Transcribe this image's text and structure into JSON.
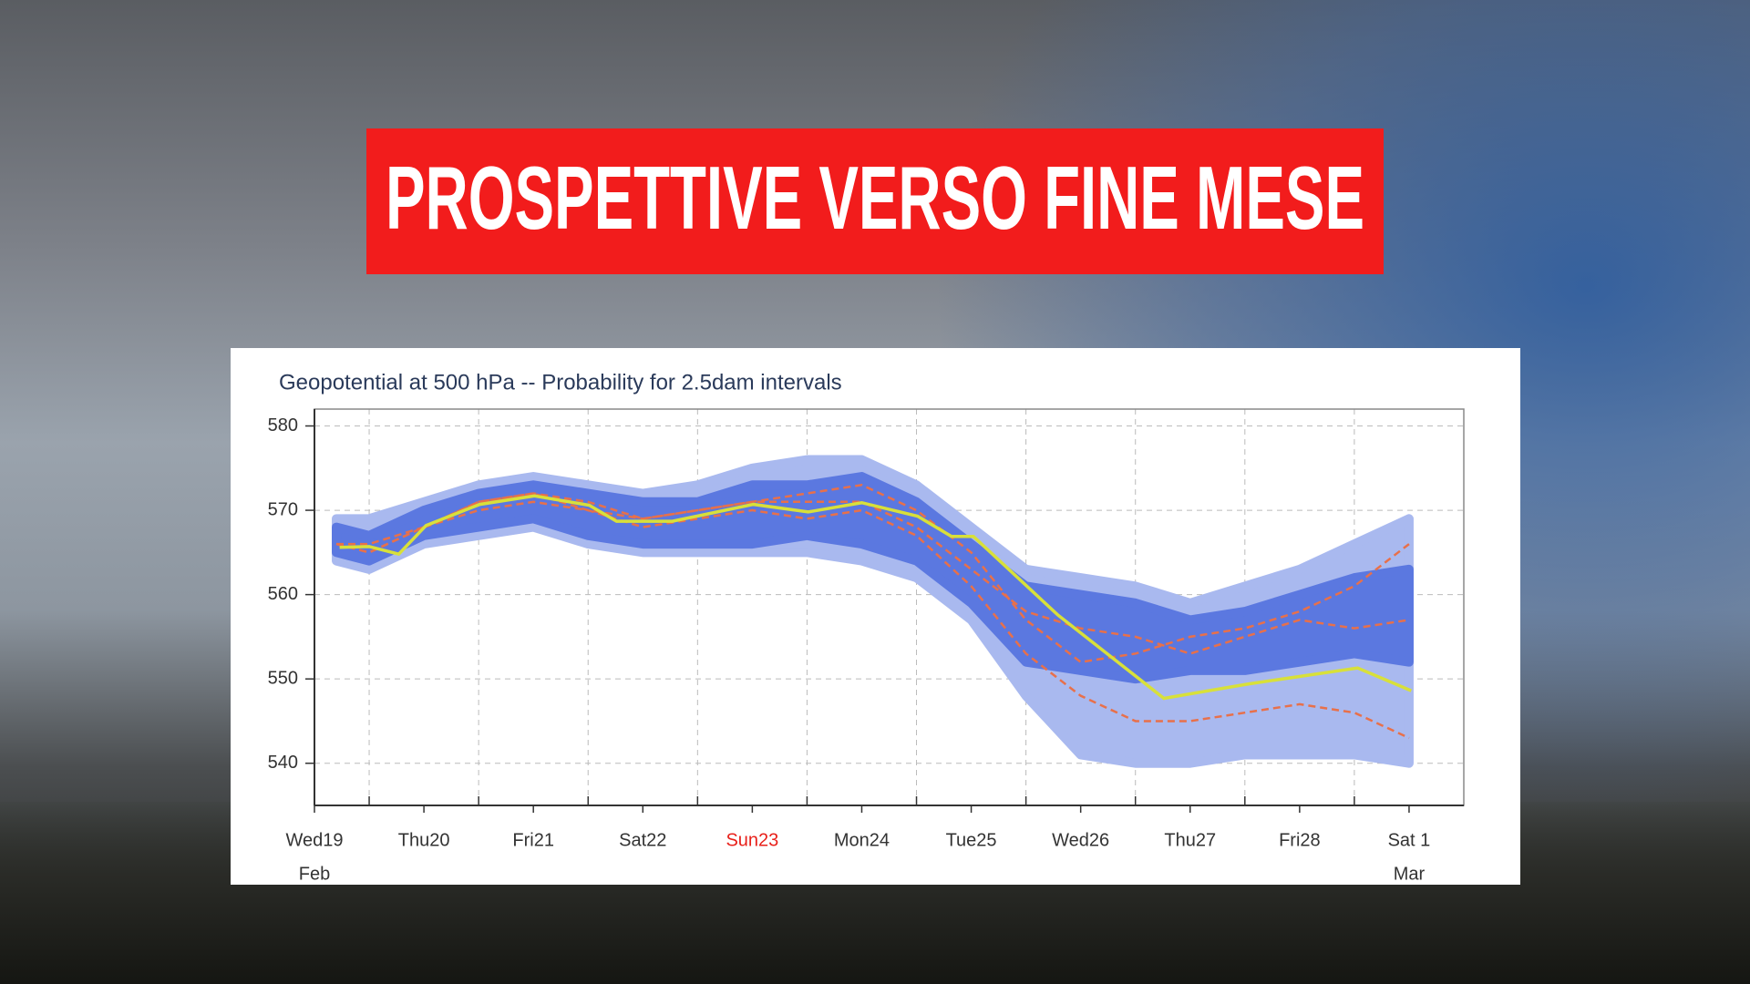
{
  "banner": {
    "title": "PROSPETTIVE VERSO FINE MESE"
  },
  "chart_data": {
    "type": "line",
    "title": "Geopotential at 500 hPa -- Probability for 2.5dam intervals",
    "xlim": [
      0,
      10.5
    ],
    "ylim": [
      535,
      582
    ],
    "yticks": [
      540,
      550,
      560,
      570,
      580
    ],
    "xticks": [
      {
        "value": 0,
        "label": "Wed19"
      },
      {
        "value": 1,
        "label": "Thu20"
      },
      {
        "value": 2,
        "label": "Fri21"
      },
      {
        "value": 3,
        "label": "Sat22"
      },
      {
        "value": 4,
        "label": "Sun23",
        "color": "#e8201a"
      },
      {
        "value": 5,
        "label": "Mon24"
      },
      {
        "value": 6,
        "label": "Tue25"
      },
      {
        "value": 7,
        "label": "Wed26"
      },
      {
        "value": 8,
        "label": "Thu27"
      },
      {
        "value": 9,
        "label": "Fri28"
      },
      {
        "value": 10,
        "label": "Sat 1"
      }
    ],
    "x_sublabels": [
      {
        "value": 0,
        "label": "Feb"
      },
      {
        "value": 10,
        "label": "Mar"
      }
    ],
    "xgrid": [
      0.5,
      1.5,
      2.5,
      3.5,
      4.5,
      5.5,
      6.5,
      7.5,
      8.5,
      9.5
    ],
    "grid": true,
    "bands": [
      {
        "color": "#a9b9ef",
        "x": [
          0.2,
          0.5,
          1,
          1.5,
          2,
          2.5,
          3,
          3.5,
          4,
          4.5,
          5,
          5.5,
          6,
          6.5,
          7,
          7.5,
          8,
          8.5,
          9,
          9.5,
          10
        ],
        "high": [
          569,
          569,
          571,
          573,
          574,
          573,
          572,
          573,
          575,
          576,
          576,
          573,
          568,
          563,
          562,
          561,
          559,
          561,
          563,
          566,
          569
        ],
        "low": [
          564,
          563,
          566,
          567,
          568,
          566,
          565,
          565,
          565,
          565,
          564,
          562,
          557,
          548,
          541,
          540,
          540,
          541,
          541,
          541,
          540
        ]
      },
      {
        "color": "#5b78e0",
        "x": [
          0.2,
          0.5,
          1,
          1.5,
          2,
          2.5,
          3,
          3.5,
          4,
          4.5,
          5,
          5.5,
          6,
          6.5,
          7,
          7.5,
          8,
          8.5,
          9,
          9.5,
          10
        ],
        "high": [
          568,
          567,
          570,
          572,
          573,
          572,
          571,
          571,
          573,
          573,
          574,
          571,
          566,
          561,
          560,
          559,
          557,
          558,
          560,
          562,
          563
        ],
        "low": [
          565,
          564,
          567,
          568,
          569,
          567,
          566,
          566,
          566,
          567,
          566,
          564,
          559,
          552,
          551,
          550,
          551,
          551,
          552,
          553,
          552
        ]
      }
    ],
    "members": [
      {
        "color": "#e8704a",
        "x": [
          0.2,
          0.5,
          1,
          1.5,
          2,
          2.5,
          3,
          3.5,
          4,
          4.5,
          5,
          5.5,
          6,
          6.5,
          7,
          7.5,
          8,
          8.5,
          9,
          9.5,
          10
        ],
        "values": [
          566,
          566,
          568,
          571,
          572,
          571,
          569,
          570,
          571,
          572,
          573,
          570,
          565,
          557,
          552,
          553,
          555,
          556,
          558,
          561,
          566
        ]
      },
      {
        "color": "#e8704a",
        "x": [
          0.2,
          0.5,
          1,
          1.5,
          2,
          2.5,
          3,
          3.5,
          4,
          4.5,
          5,
          5.5,
          6,
          6.5,
          7,
          7.5,
          8,
          8.5,
          9,
          9.5,
          10
        ],
        "values": [
          566,
          565,
          568,
          570,
          571,
          570,
          568,
          569,
          570,
          569,
          570,
          567,
          561,
          553,
          548,
          545,
          545,
          546,
          547,
          546,
          543
        ]
      },
      {
        "color": "#e8704a",
        "x": [
          0.2,
          0.5,
          1,
          1.5,
          2,
          2.5,
          3,
          3.5,
          4,
          4.5,
          5,
          5.5,
          6,
          6.5,
          7,
          7.5,
          8,
          8.5,
          9,
          9.5,
          10
        ],
        "values": [
          566,
          565,
          568,
          571,
          572,
          570,
          569,
          570,
          571,
          571,
          571,
          568,
          563,
          558,
          556,
          555,
          553,
          555,
          557,
          556,
          557
        ]
      }
    ],
    "series": [
      {
        "color": "#d8e03a",
        "x": [
          0.23,
          0.5,
          0.77,
          1.02,
          1.51,
          2.01,
          2.51,
          2.76,
          3.27,
          4.01,
          4.51,
          5.0,
          5.51,
          5.82,
          6.02,
          6.79,
          7.76,
          8.53,
          9.53,
          10.02
        ],
        "values": [
          565.6,
          565.7,
          564.8,
          568.2,
          570.7,
          571.7,
          570.6,
          568.7,
          568.7,
          570.7,
          569.8,
          570.9,
          569.3,
          566.9,
          566.9,
          557.6,
          547.7,
          549.4,
          551.3,
          548.6
        ]
      }
    ]
  }
}
